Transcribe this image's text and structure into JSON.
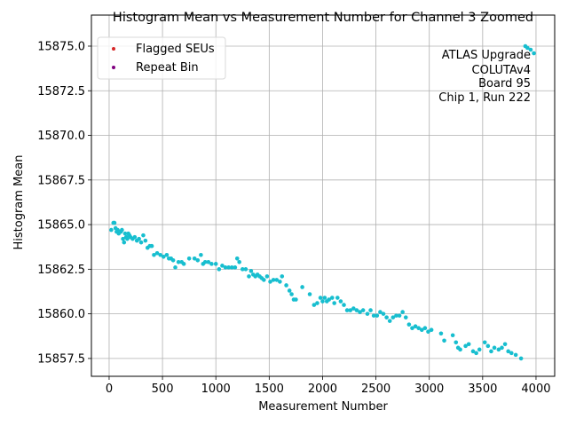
{
  "chart_data": {
    "type": "scatter",
    "title": "Histogram Mean vs Measurement Number for Channel 3 Zoomed",
    "xlabel": "Measurement Number",
    "ylabel": "Histogram Mean",
    "xlim": [
      -166,
      4175
    ],
    "ylim": [
      15856.5,
      15876.74
    ],
    "xticks": [
      0,
      500,
      1000,
      1500,
      2000,
      2500,
      3000,
      3500,
      4000
    ],
    "xtick_labels": [
      "0",
      "500",
      "1000",
      "1500",
      "2000",
      "2500",
      "3000",
      "3500",
      "4000"
    ],
    "yticks": [
      15857.5,
      15860.0,
      15862.5,
      15865.0,
      15867.5,
      15870.0,
      15872.5,
      15875.0
    ],
    "ytick_labels": [
      "15857.5",
      "15860.0",
      "15862.5",
      "15865.0",
      "15867.5",
      "15870.0",
      "15872.5",
      "15875.0"
    ],
    "grid": true,
    "legend": {
      "placement": "top-left",
      "entries": [
        {
          "label": "Flagged SEUs",
          "color": "#d62728"
        },
        {
          "label": "Repeat Bin",
          "color": "#800080"
        }
      ]
    },
    "annotation": {
      "placement": "top-right",
      "lines": [
        "ATLAS Upgrade",
        "COLUTAv4",
        "Board 95",
        "Chip 1, Run 222"
      ]
    },
    "series": [
      {
        "name": "Measurements",
        "color": "#17becf",
        "x": [
          20,
          40,
          50,
          60,
          70,
          80,
          90,
          100,
          110,
          120,
          130,
          140,
          150,
          160,
          170,
          180,
          190,
          200,
          220,
          240,
          260,
          280,
          300,
          320,
          340,
          360,
          380,
          400,
          420,
          450,
          480,
          510,
          540,
          560,
          580,
          600,
          620,
          650,
          680,
          700,
          750,
          800,
          830,
          860,
          880,
          900,
          930,
          960,
          1000,
          1030,
          1060,
          1090,
          1120,
          1150,
          1180,
          1200,
          1220,
          1250,
          1280,
          1310,
          1330,
          1350,
          1370,
          1390,
          1410,
          1430,
          1450,
          1480,
          1510,
          1540,
          1570,
          1600,
          1620,
          1660,
          1690,
          1710,
          1730,
          1750,
          1810,
          1880,
          1920,
          1950,
          1980,
          2000,
          2020,
          2040,
          2060,
          2090,
          2110,
          2140,
          2170,
          2200,
          2230,
          2260,
          2290,
          2320,
          2350,
          2380,
          2420,
          2450,
          2480,
          2510,
          2540,
          2570,
          2600,
          2630,
          2660,
          2690,
          2720,
          2750,
          2780,
          2810,
          2840,
          2870,
          2900,
          2930,
          2960,
          2990,
          3020,
          3110,
          3140,
          3220,
          3250,
          3270,
          3290,
          3340,
          3370,
          3410,
          3440,
          3470,
          3520,
          3550,
          3580,
          3610,
          3650,
          3680,
          3710,
          3740,
          3770,
          3810,
          3860,
          3900,
          3920,
          3950,
          3980
        ],
        "y": [
          15864.7,
          15865.1,
          15865.1,
          15864.8,
          15864.6,
          15864.7,
          15864.5,
          15864.6,
          15864.6,
          15864.7,
          15864.2,
          15864.0,
          15864.5,
          15864.3,
          15864.2,
          15864.5,
          15864.4,
          15864.3,
          15864.2,
          15864.3,
          15864.1,
          15864.2,
          15864.0,
          15864.4,
          15864.1,
          15863.7,
          15863.8,
          15863.8,
          15863.3,
          15863.4,
          15863.3,
          15863.2,
          15863.3,
          15863.1,
          15863.1,
          15863.0,
          15862.6,
          15862.9,
          15862.9,
          15862.8,
          15863.1,
          15863.1,
          15863.0,
          15863.3,
          15862.8,
          15862.9,
          15862.9,
          15862.8,
          15862.8,
          15862.5,
          15862.7,
          15862.6,
          15862.6,
          15862.6,
          15862.6,
          15863.1,
          15862.9,
          15862.5,
          15862.5,
          15862.1,
          15862.4,
          15862.2,
          15862.1,
          15862.2,
          15862.1,
          15862.0,
          15861.9,
          15862.1,
          15861.8,
          15861.9,
          15861.9,
          15861.8,
          15862.1,
          15861.6,
          15861.3,
          15861.1,
          15860.8,
          15860.8,
          15861.5,
          15861.1,
          15860.5,
          15860.6,
          15860.9,
          15860.7,
          15860.9,
          15860.7,
          15860.8,
          15860.9,
          15860.6,
          15860.9,
          15860.7,
          15860.5,
          15860.2,
          15860.2,
          15860.3,
          15860.2,
          15860.1,
          15860.2,
          15860.0,
          15860.2,
          15859.9,
          15859.9,
          15860.1,
          15860.0,
          15859.8,
          15859.6,
          15859.8,
          15859.9,
          15859.9,
          15860.1,
          15859.8,
          15859.4,
          15859.2,
          15859.3,
          15859.2,
          15859.1,
          15859.2,
          15859.0,
          15859.1,
          15858.9,
          15858.5,
          15858.8,
          15858.4,
          15858.1,
          15858.0,
          15858.2,
          15858.3,
          15857.9,
          15857.8,
          15858.0,
          15858.4,
          15858.2,
          15857.9,
          15858.1,
          15858.0,
          15858.1,
          15858.3,
          15857.9,
          15857.8,
          15857.7,
          15857.5,
          15875.0,
          15874.9,
          15874.8,
          15874.6
        ]
      }
    ]
  }
}
